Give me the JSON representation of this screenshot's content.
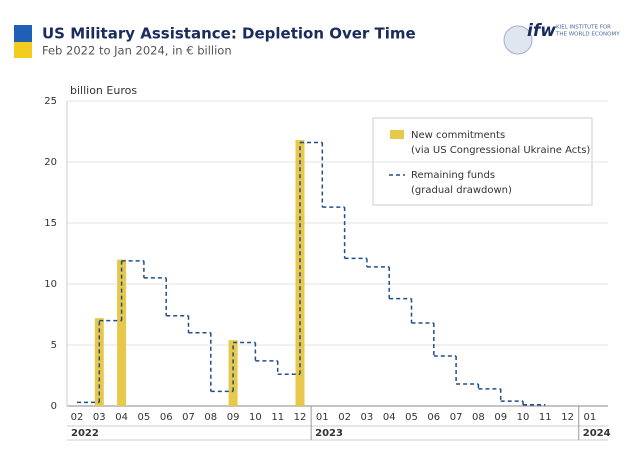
{
  "header": {
    "title": "US Military Assistance: Depletion Over Time",
    "subtitle": "Feb 2022 to Jan 2024, in € billion",
    "logo_mark": "ifw",
    "logo_text": [
      "KIEL INSTITUTE FOR",
      "THE WORLD ECONOMY"
    ]
  },
  "chart_data": {
    "type": "bar+step",
    "y_label": "billion Euros",
    "categories": [
      "02",
      "03",
      "04",
      "05",
      "06",
      "07",
      "08",
      "09",
      "10",
      "11",
      "12",
      "01",
      "02",
      "03",
      "04",
      "05",
      "06",
      "07",
      "08",
      "09",
      "10",
      "11",
      "12",
      "01"
    ],
    "years": [
      "2022",
      "2023",
      "2024"
    ],
    "ylim": [
      0,
      25
    ],
    "yticks": [
      0,
      5,
      10,
      15,
      20,
      25
    ],
    "grid": true,
    "series": [
      {
        "name": "New commitments",
        "description": "(via US Congressional Ukraine Acts)",
        "color": "#e8c84a",
        "kind": "bar",
        "values": [
          null,
          7.2,
          12.0,
          null,
          null,
          null,
          null,
          5.4,
          null,
          null,
          21.8,
          null,
          null,
          null,
          null,
          null,
          null,
          null,
          null,
          null,
          null,
          null,
          null,
          null
        ]
      },
      {
        "name": "Remaining funds",
        "description": "(gradual drawdown)",
        "color": "#1f4e8c",
        "kind": "step",
        "dashed": true,
        "values": [
          0.3,
          7.0,
          11.9,
          10.5,
          7.4,
          6.0,
          1.2,
          5.2,
          3.7,
          2.6,
          21.6,
          16.3,
          12.1,
          11.4,
          8.8,
          6.8,
          4.1,
          1.8,
          1.4,
          0.4,
          0.1,
          null,
          null,
          null
        ]
      }
    ]
  }
}
